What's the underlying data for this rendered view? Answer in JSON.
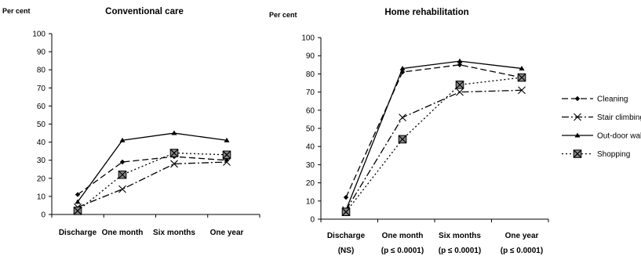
{
  "legend": {
    "entries": [
      {
        "label": "Cleaning",
        "dash": "8,4",
        "marker": "diamond"
      },
      {
        "label": "Stair climbing",
        "dash": "9,3,2,3",
        "marker": "x"
      },
      {
        "label": "Out-door walking",
        "dash": "",
        "marker": "triangle"
      },
      {
        "label": "Shopping",
        "dash": "2,3",
        "marker": "xbox"
      }
    ]
  },
  "chart_data": [
    {
      "type": "line",
      "title": "Conventional care",
      "ylabel": "Per cent",
      "categories": [
        "Discharge",
        "One month",
        "Six months",
        "One year"
      ],
      "category_sublabels": [
        "",
        "",
        "",
        ""
      ],
      "ylim": [
        0,
        100
      ],
      "yticks": [
        "0",
        "10",
        "20",
        "30",
        "40",
        "50",
        "60",
        "70",
        "80",
        "90",
        "100"
      ],
      "grid": false,
      "legend_position": "right",
      "series": [
        {
          "name": "Cleaning",
          "values": [
            11,
            29,
            32,
            30
          ]
        },
        {
          "name": "Stair climbing",
          "values": [
            4,
            14,
            28,
            29
          ]
        },
        {
          "name": "Out-door walking",
          "values": [
            7,
            41,
            45,
            41
          ]
        },
        {
          "name": "Shopping",
          "values": [
            2,
            22,
            34,
            33
          ]
        }
      ]
    },
    {
      "type": "line",
      "title": "Home rehabilitation",
      "ylabel": "Per cent",
      "categories": [
        "Discharge",
        "One month",
        "Six months",
        "One year"
      ],
      "category_sublabels": [
        "(NS)",
        "(p ≤ 0.0001)",
        "(p ≤ 0.0001)",
        "(p ≤ 0.0001)"
      ],
      "ylim": [
        0,
        100
      ],
      "yticks": [
        "0",
        "10",
        "20",
        "30",
        "40",
        "50",
        "60",
        "70",
        "80",
        "90",
        "100"
      ],
      "grid": false,
      "legend_position": "right",
      "series": [
        {
          "name": "Cleaning",
          "values": [
            12,
            81,
            85,
            78
          ]
        },
        {
          "name": "Stair climbing",
          "values": [
            5,
            56,
            70,
            71
          ]
        },
        {
          "name": "Out-door walking",
          "values": [
            5,
            83,
            87,
            83
          ]
        },
        {
          "name": "Shopping",
          "values": [
            4,
            44,
            74,
            78
          ]
        }
      ]
    }
  ]
}
